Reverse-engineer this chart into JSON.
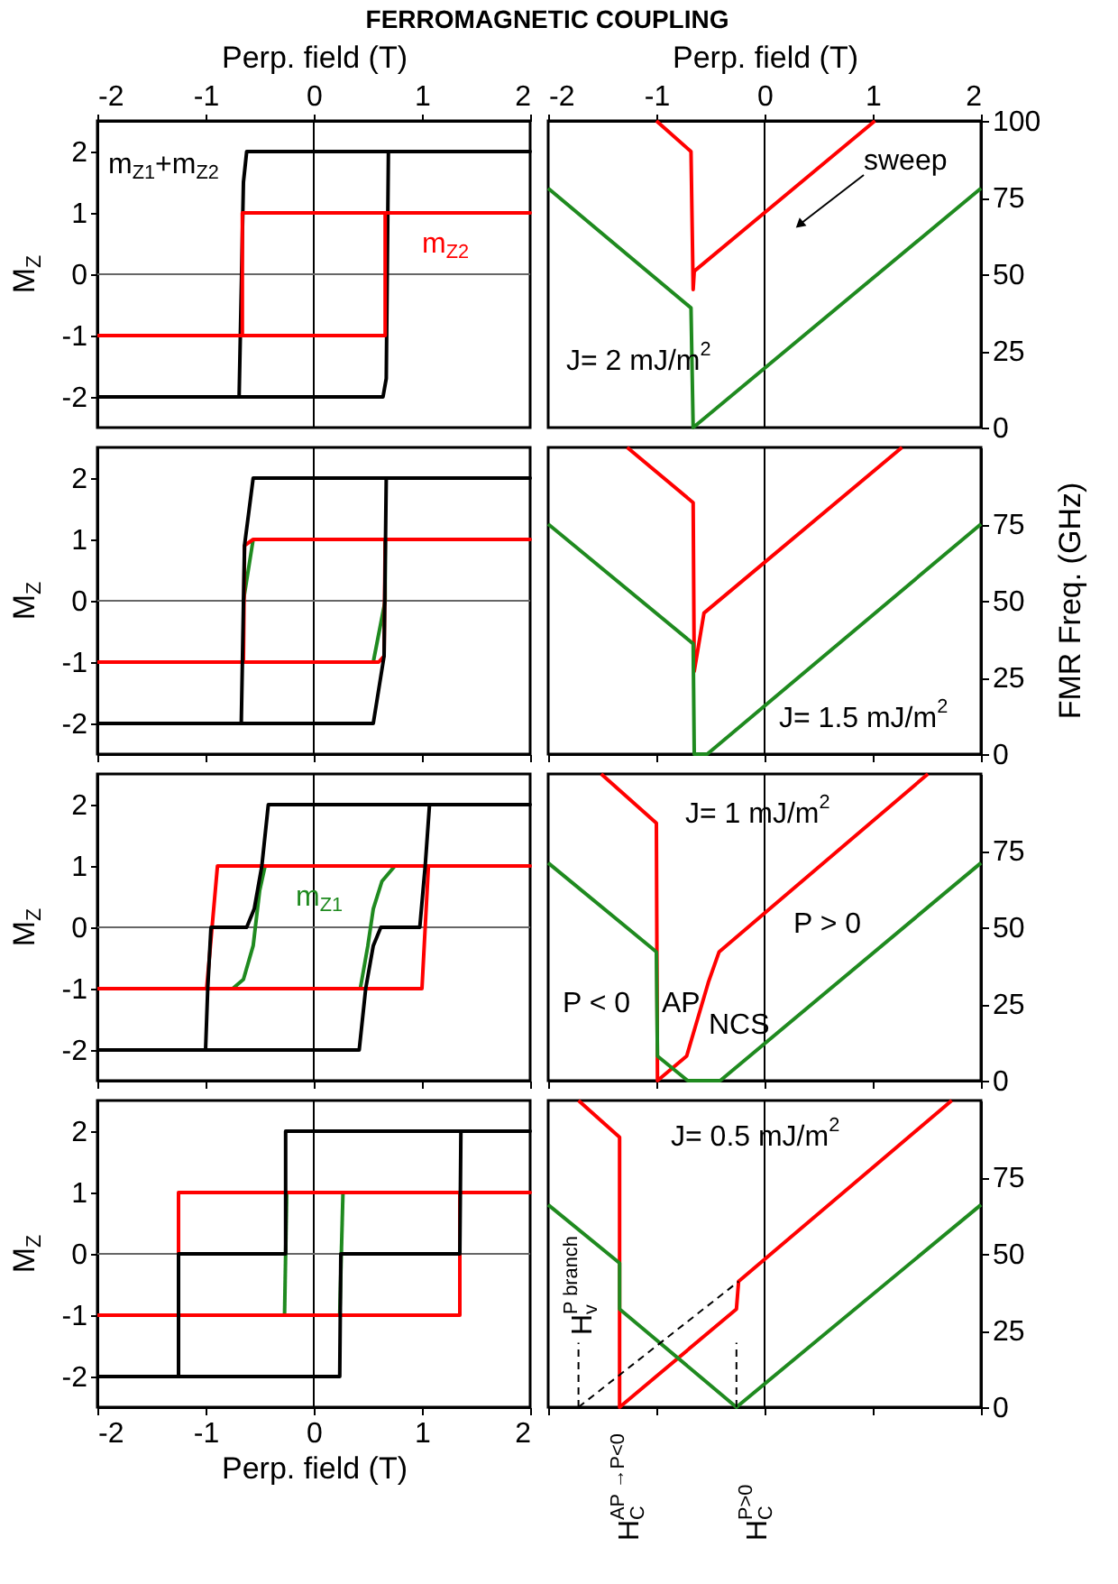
{
  "chart_data": [
    {
      "type": "line",
      "title": "FERROMAGNETIC COUPLING",
      "xlabel": "Perp. field (T)",
      "xlim": [
        -2,
        2
      ],
      "xticks": [
        -2,
        -1,
        0,
        1,
        2
      ],
      "ylabel": "M$_{Z}$",
      "ylim": [
        -2.5,
        2.5
      ],
      "yticks": [
        -2,
        -1,
        0,
        1,
        2
      ],
      "ref_lines": [
        {
          "axis": "x",
          "value": 0,
          "color": "#000000"
        },
        {
          "axis": "y",
          "value": 0,
          "color": "#666666"
        }
      ],
      "series": [
        {
          "name": "m$_{Z1}$+m$_{Z2}$",
          "color": "#000000",
          "x": [
            -2,
            0.64,
            0.67,
            0.69,
            2,
            -0.62,
            -0.65,
            -0.69
          ],
          "values": [
            -2,
            -2,
            -1.7,
            2,
            2,
            2,
            1.5,
            -2
          ]
        },
        {
          "name": "m$_{Z2}$",
          "color": "#ff0000",
          "x": [
            -2,
            0.66,
            0.66,
            2,
            -0.66,
            -0.66
          ],
          "values": [
            -1,
            -1,
            1,
            1,
            1,
            -1
          ]
        }
      ]
    },
    {
      "type": "line",
      "xlabel": "Perp. field (T)",
      "xlim": [
        -2,
        2
      ],
      "xticks": [
        -2,
        -1,
        0,
        1,
        2
      ],
      "ylim": [
        0,
        100
      ],
      "yticks": [
        0,
        25,
        50,
        75,
        100
      ],
      "ref_lines": [
        {
          "axis": "x",
          "value": 0,
          "color": "#000000"
        }
      ],
      "annotations": [
        "sweep",
        "J= 2 mJ/m$^{2}$"
      ],
      "series": [
        {
          "color": "#ff0000",
          "x": [
            -1,
            -0.68,
            -0.66,
            -0.65,
            1.02
          ],
          "values": [
            100,
            90,
            45,
            51,
            100
          ]
        },
        {
          "color": "#1f8a1f",
          "x": [
            -2,
            -0.68,
            -0.66,
            2
          ],
          "values": [
            78,
            39,
            0,
            78
          ]
        }
      ]
    },
    {
      "type": "line",
      "xlim": [
        -2,
        2
      ],
      "xticks": [
        -2,
        -1,
        0,
        1,
        2
      ],
      "tick_labels": "y",
      "ylabel": "M$_{Z}$",
      "ylim": [
        -2.5,
        2.5
      ],
      "yticks": [
        -2,
        -1,
        0,
        1,
        2
      ],
      "ref_lines": [
        {
          "axis": "x",
          "value": 0,
          "color": "#000000"
        },
        {
          "axis": "y",
          "value": 0,
          "color": "#666666"
        }
      ],
      "series": [
        {
          "color": "#1f8a1f",
          "x": [
            -0.65,
            -0.65,
            -0.56,
            null,
            0.55,
            0.66,
            0.66
          ],
          "values": [
            -1,
            0,
            1,
            null,
            -1,
            0,
            1
          ]
        },
        {
          "color": "#ff0000",
          "x": [
            -2,
            0.6,
            0.65,
            0.66,
            2,
            -0.56,
            -0.64,
            -0.65
          ],
          "values": [
            -1,
            -1,
            -0.9,
            1,
            1,
            1,
            0.9,
            -1
          ]
        },
        {
          "color": "#000000",
          "x": [
            -2,
            0.55,
            0.65,
            0.67,
            2,
            -0.56,
            -0.64,
            -0.67
          ],
          "values": [
            -2,
            -2,
            -0.9,
            2,
            2,
            2,
            0.9,
            -2
          ]
        }
      ]
    },
    {
      "type": "line",
      "xlim": [
        -2,
        2
      ],
      "xticks": [
        -2,
        -1,
        0,
        1,
        2
      ],
      "tick_labels": "y",
      "ylabel": "FMR Freq. (GHz)",
      "ylim": [
        0,
        100
      ],
      "yticks": [
        0,
        25,
        50,
        75
      ],
      "ref_lines": [
        {
          "axis": "x",
          "value": 0,
          "color": "#000000"
        }
      ],
      "annotations": [
        "J= 1.5 mJ/m$^{2}$"
      ],
      "series": [
        {
          "color": "#ff0000",
          "x": [
            -1.27,
            -0.66,
            -0.65,
            -0.56,
            1.27
          ],
          "values": [
            100,
            82,
            27,
            46,
            100
          ]
        },
        {
          "color": "#1f8a1f",
          "x": [
            -2,
            -0.66,
            -0.65,
            -0.53,
            2
          ],
          "values": [
            75,
            36,
            0,
            0,
            75
          ]
        }
      ]
    },
    {
      "type": "line",
      "xlim": [
        -2,
        2
      ],
      "xticks": [
        -2,
        -1,
        0,
        1,
        2
      ],
      "tick_labels": "y",
      "ylabel": "M$_{Z}$",
      "ylim": [
        -2.5,
        2.5
      ],
      "yticks": [
        -2,
        -1,
        0,
        1,
        2
      ],
      "ref_lines": [
        {
          "axis": "x",
          "value": 0,
          "color": "#000000"
        },
        {
          "axis": "y",
          "value": 0,
          "color": "#666666"
        }
      ],
      "series": [
        {
          "name": "m$_{Z1}$",
          "color": "#1f8a1f",
          "x": [
            -0.75,
            -0.65,
            -0.56,
            -0.5,
            -0.45,
            null,
            0.43,
            0.5,
            0.55,
            0.63,
            0.75
          ],
          "values": [
            -1,
            -0.85,
            -0.3,
            0.6,
            1,
            null,
            -1,
            -0.3,
            0.3,
            0.75,
            1
          ]
        },
        {
          "color": "#ff0000",
          "x": [
            -2,
            1.0,
            1.06,
            2,
            -0.89,
            -0.99
          ],
          "values": [
            -1,
            -1,
            1,
            1,
            1,
            -1
          ]
        },
        {
          "color": "#000000",
          "x": [
            -2,
            0.42,
            0.48,
            0.55,
            0.62,
            0.98,
            1.03,
            1.07,
            2,
            -0.42,
            -0.48,
            -0.55,
            -0.62,
            -0.95,
            -0.98,
            -1.0
          ],
          "values": [
            -2,
            -2,
            -1,
            -0.3,
            0,
            0,
            1,
            2,
            2,
            2,
            1,
            0.3,
            0,
            0,
            -1,
            -2
          ]
        }
      ]
    },
    {
      "type": "line",
      "xlim": [
        -2,
        2
      ],
      "xticks": [
        -2,
        -1,
        0,
        1,
        2
      ],
      "tick_labels": "y",
      "ylim": [
        0,
        100
      ],
      "yticks": [
        0,
        25,
        50,
        75
      ],
      "ref_lines": [
        {
          "axis": "x",
          "value": 0,
          "color": "#000000"
        }
      ],
      "annotations": [
        "J= 1 mJ/m$^{2}$",
        "P < 0",
        "AP",
        "NCS",
        "P > 0"
      ],
      "series": [
        {
          "color": "#ff0000",
          "x": [
            -1.51,
            -1.0,
            -0.99,
            -0.72,
            -0.62,
            -0.52,
            -0.42,
            1.51
          ],
          "values": [
            100,
            84,
            0,
            8,
            20,
            32,
            42,
            100
          ]
        },
        {
          "color": "#1f8a1f",
          "x": [
            -2,
            -1.0,
            -0.99,
            -0.71,
            -0.41,
            2
          ],
          "values": [
            71,
            42,
            8,
            0,
            0,
            71
          ]
        }
      ]
    },
    {
      "type": "line",
      "xlabel": "Perp. field (T)",
      "xlim": [
        -2,
        2
      ],
      "xticks": [
        -2,
        -1,
        0,
        1,
        2
      ],
      "ylabel": "M$_{Z}$",
      "ylim": [
        -2.5,
        2.5
      ],
      "yticks": [
        -2,
        -1,
        0,
        1,
        2
      ],
      "ref_lines": [
        {
          "axis": "x",
          "value": 0,
          "color": "#000000"
        },
        {
          "axis": "y",
          "value": 0,
          "color": "#666666"
        }
      ],
      "series": [
        {
          "color": "#1f8a1f",
          "x": [
            -0.27,
            -0.25,
            null,
            0.24,
            0.27
          ],
          "values": [
            -1,
            1,
            null,
            -1,
            1
          ]
        },
        {
          "color": "#ff0000",
          "x": [
            -2,
            1.35,
            1.35,
            2,
            -1.25,
            -1.25
          ],
          "values": [
            -1,
            -1,
            1,
            1,
            1,
            -1
          ]
        },
        {
          "color": "#000000",
          "x": [
            -2,
            0.24,
            0.25,
            1.35,
            1.36,
            2,
            -0.26,
            -0.26,
            -1.25,
            -1.25
          ],
          "values": [
            -2,
            -2,
            0,
            0,
            2,
            2,
            2,
            0,
            0,
            -2
          ]
        }
      ]
    },
    {
      "type": "line",
      "xlim": [
        -2,
        2
      ],
      "xticks": [
        -2,
        -1,
        0,
        1,
        2
      ],
      "tick_labels": "y",
      "ylim": [
        0,
        100
      ],
      "yticks": [
        0,
        25,
        50,
        75
      ],
      "ref_lines": [
        {
          "axis": "x",
          "value": 0,
          "color": "#000000"
        }
      ],
      "annotations": [
        "J= 0.5 mJ/m$^{2}$",
        "H$_{v}$$^{P branch}$",
        "H$_{C}$$^{AP →P<0}$",
        "H$_{C}$$^{P>0}$"
      ],
      "series": [
        {
          "color": "#ff0000",
          "x": [
            -1.72,
            -1.34,
            -1.34,
            -0.26,
            -0.24,
            1.73
          ],
          "values": [
            100,
            88,
            0,
            32,
            41,
            100
          ]
        },
        {
          "color": "#1f8a1f",
          "x": [
            -2,
            -1.34,
            -1.34,
            -0.26,
            2
          ],
          "values": [
            66,
            47,
            32,
            0,
            66
          ]
        },
        {
          "color": "#000000",
          "line_style": "dashed",
          "x": [
            -1.72,
            -0.24
          ],
          "values": [
            0,
            41
          ]
        },
        {
          "color": "#000000",
          "line_style": "dashed",
          "x": [
            -1.72,
            -1.72
          ],
          "values": [
            0,
            21
          ]
        },
        {
          "color": "#000000",
          "line_style": "dashed",
          "x": [
            -0.26,
            -0.26
          ],
          "values": [
            0,
            21
          ]
        }
      ]
    }
  ]
}
